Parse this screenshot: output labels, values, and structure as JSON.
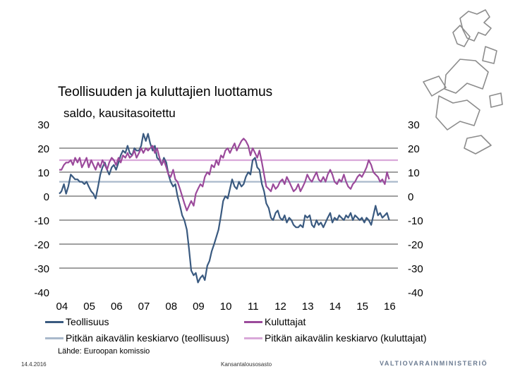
{
  "chart_data": {
    "type": "line",
    "title": "Teollisuuden ja kuluttajien luottamus",
    "subtitle": "saldo, kausitasoitettu",
    "x_tick_labels": [
      "04",
      "05",
      "06",
      "07",
      "08",
      "09",
      "10",
      "11",
      "12",
      "13",
      "14",
      "15",
      "16"
    ],
    "x_range": [
      2004.0,
      2016.4
    ],
    "ylim": [
      -40,
      30
    ],
    "y_ticks": [
      30,
      20,
      10,
      0,
      -10,
      -20,
      -30,
      -40
    ],
    "y_tick_labels": [
      "30",
      "20",
      "10",
      "0",
      "-10",
      "-20",
      "-30",
      "-40"
    ],
    "grid": true,
    "legend_position": "bottom",
    "series": [
      {
        "name": "Teollisuus",
        "color": "#3a5a80",
        "points": [
          [
            2004.0,
            1
          ],
          [
            2004.08,
            2
          ],
          [
            2004.17,
            5
          ],
          [
            2004.25,
            1
          ],
          [
            2004.33,
            4
          ],
          [
            2004.42,
            9
          ],
          [
            2004.5,
            8
          ],
          [
            2004.58,
            7
          ],
          [
            2004.67,
            7
          ],
          [
            2004.75,
            6
          ],
          [
            2004.83,
            6
          ],
          [
            2004.92,
            5
          ],
          [
            2005.0,
            6
          ],
          [
            2005.08,
            4
          ],
          [
            2005.17,
            2
          ],
          [
            2005.25,
            1
          ],
          [
            2005.33,
            -1
          ],
          [
            2005.42,
            4
          ],
          [
            2005.5,
            9
          ],
          [
            2005.58,
            12
          ],
          [
            2005.67,
            14
          ],
          [
            2005.75,
            11
          ],
          [
            2005.83,
            9
          ],
          [
            2005.92,
            12
          ],
          [
            2006.0,
            13
          ],
          [
            2006.08,
            11
          ],
          [
            2006.17,
            14
          ],
          [
            2006.25,
            17
          ],
          [
            2006.33,
            19
          ],
          [
            2006.42,
            18
          ],
          [
            2006.5,
            21
          ],
          [
            2006.58,
            18
          ],
          [
            2006.67,
            17
          ],
          [
            2006.75,
            20
          ],
          [
            2006.83,
            19
          ],
          [
            2006.92,
            19
          ],
          [
            2007.0,
            21
          ],
          [
            2007.08,
            26
          ],
          [
            2007.17,
            23
          ],
          [
            2007.25,
            26
          ],
          [
            2007.33,
            22
          ],
          [
            2007.42,
            19
          ],
          [
            2007.5,
            21
          ],
          [
            2007.58,
            16
          ],
          [
            2007.67,
            15
          ],
          [
            2007.75,
            13
          ],
          [
            2007.83,
            16
          ],
          [
            2007.92,
            14
          ],
          [
            2008.0,
            9
          ],
          [
            2008.08,
            6
          ],
          [
            2008.17,
            4
          ],
          [
            2008.25,
            5
          ],
          [
            2008.33,
            0
          ],
          [
            2008.42,
            -4
          ],
          [
            2008.5,
            -8
          ],
          [
            2008.58,
            -10
          ],
          [
            2008.67,
            -14
          ],
          [
            2008.75,
            -22
          ],
          [
            2008.83,
            -31
          ],
          [
            2008.92,
            -33
          ],
          [
            2009.0,
            -32
          ],
          [
            2009.08,
            -36
          ],
          [
            2009.17,
            -34
          ],
          [
            2009.25,
            -33
          ],
          [
            2009.33,
            -35
          ],
          [
            2009.42,
            -29
          ],
          [
            2009.5,
            -27
          ],
          [
            2009.58,
            -23
          ],
          [
            2009.67,
            -20
          ],
          [
            2009.75,
            -17
          ],
          [
            2009.83,
            -14
          ],
          [
            2009.92,
            -8
          ],
          [
            2010.0,
            -2
          ],
          [
            2010.08,
            0
          ],
          [
            2010.17,
            -1
          ],
          [
            2010.25,
            3
          ],
          [
            2010.33,
            7
          ],
          [
            2010.42,
            4
          ],
          [
            2010.5,
            3
          ],
          [
            2010.58,
            6
          ],
          [
            2010.67,
            4
          ],
          [
            2010.75,
            5
          ],
          [
            2010.83,
            8
          ],
          [
            2010.92,
            10
          ],
          [
            2011.0,
            9
          ],
          [
            2011.08,
            15
          ],
          [
            2011.17,
            16
          ],
          [
            2011.25,
            12
          ],
          [
            2011.33,
            11
          ],
          [
            2011.42,
            5
          ],
          [
            2011.5,
            2
          ],
          [
            2011.58,
            -3
          ],
          [
            2011.67,
            -5
          ],
          [
            2011.75,
            -9
          ],
          [
            2011.83,
            -10
          ],
          [
            2011.92,
            -7
          ],
          [
            2012.0,
            -6
          ],
          [
            2012.08,
            -9
          ],
          [
            2012.17,
            -10
          ],
          [
            2012.25,
            -8
          ],
          [
            2012.33,
            -11
          ],
          [
            2012.42,
            -9
          ],
          [
            2012.5,
            -10
          ],
          [
            2012.58,
            -12
          ],
          [
            2012.67,
            -13
          ],
          [
            2012.75,
            -13
          ],
          [
            2012.83,
            -12
          ],
          [
            2012.92,
            -13
          ],
          [
            2013.0,
            -8
          ],
          [
            2013.08,
            -9
          ],
          [
            2013.17,
            -8
          ],
          [
            2013.25,
            -12
          ],
          [
            2013.33,
            -13
          ],
          [
            2013.42,
            -10
          ],
          [
            2013.5,
            -12
          ],
          [
            2013.58,
            -11
          ],
          [
            2013.67,
            -13
          ],
          [
            2013.75,
            -11
          ],
          [
            2013.83,
            -9
          ],
          [
            2013.92,
            -7
          ],
          [
            2014.0,
            -11
          ],
          [
            2014.08,
            -9
          ],
          [
            2014.17,
            -10
          ],
          [
            2014.25,
            -8
          ],
          [
            2014.33,
            -9
          ],
          [
            2014.42,
            -10
          ],
          [
            2014.5,
            -8
          ],
          [
            2014.58,
            -9
          ],
          [
            2014.67,
            -7
          ],
          [
            2014.75,
            -10
          ],
          [
            2014.83,
            -8
          ],
          [
            2014.92,
            -9
          ],
          [
            2015.0,
            -10
          ],
          [
            2015.08,
            -9
          ],
          [
            2015.17,
            -11
          ],
          [
            2015.25,
            -9
          ],
          [
            2015.33,
            -10
          ],
          [
            2015.42,
            -12
          ],
          [
            2015.5,
            -8
          ],
          [
            2015.58,
            -4
          ],
          [
            2015.67,
            -8
          ],
          [
            2015.75,
            -7
          ],
          [
            2015.83,
            -9
          ],
          [
            2015.92,
            -8
          ],
          [
            2016.0,
            -7
          ],
          [
            2016.08,
            -10
          ]
        ]
      },
      {
        "name": "Kuluttajat",
        "color": "#9b4a9b",
        "points": [
          [
            2004.0,
            11
          ],
          [
            2004.08,
            11
          ],
          [
            2004.17,
            13
          ],
          [
            2004.25,
            14
          ],
          [
            2004.33,
            14
          ],
          [
            2004.42,
            15
          ],
          [
            2004.5,
            13
          ],
          [
            2004.58,
            16
          ],
          [
            2004.67,
            14
          ],
          [
            2004.75,
            16
          ],
          [
            2004.83,
            12
          ],
          [
            2004.92,
            14
          ],
          [
            2005.0,
            16
          ],
          [
            2005.08,
            12
          ],
          [
            2005.17,
            15
          ],
          [
            2005.25,
            13
          ],
          [
            2005.33,
            11
          ],
          [
            2005.42,
            14
          ],
          [
            2005.5,
            12
          ],
          [
            2005.58,
            15
          ],
          [
            2005.67,
            13
          ],
          [
            2005.75,
            11
          ],
          [
            2005.83,
            14
          ],
          [
            2005.92,
            16
          ],
          [
            2006.0,
            15
          ],
          [
            2006.08,
            13
          ],
          [
            2006.17,
            16
          ],
          [
            2006.25,
            14
          ],
          [
            2006.33,
            17
          ],
          [
            2006.42,
            16
          ],
          [
            2006.5,
            18
          ],
          [
            2006.58,
            16
          ],
          [
            2006.67,
            17
          ],
          [
            2006.75,
            19
          ],
          [
            2006.83,
            16
          ],
          [
            2006.92,
            18
          ],
          [
            2007.0,
            20
          ],
          [
            2007.08,
            18
          ],
          [
            2007.17,
            20
          ],
          [
            2007.25,
            19
          ],
          [
            2007.33,
            20
          ],
          [
            2007.42,
            21
          ],
          [
            2007.5,
            18
          ],
          [
            2007.58,
            20
          ],
          [
            2007.67,
            16
          ],
          [
            2007.75,
            13
          ],
          [
            2007.83,
            15
          ],
          [
            2007.92,
            12
          ],
          [
            2008.0,
            9
          ],
          [
            2008.08,
            8
          ],
          [
            2008.17,
            11
          ],
          [
            2008.25,
            7
          ],
          [
            2008.33,
            6
          ],
          [
            2008.42,
            3
          ],
          [
            2008.5,
            0
          ],
          [
            2008.58,
            -3
          ],
          [
            2008.67,
            -6
          ],
          [
            2008.75,
            -4
          ],
          [
            2008.83,
            -2
          ],
          [
            2008.92,
            -4
          ],
          [
            2009.0,
            1
          ],
          [
            2009.08,
            3
          ],
          [
            2009.17,
            5
          ],
          [
            2009.25,
            4
          ],
          [
            2009.33,
            8
          ],
          [
            2009.42,
            10
          ],
          [
            2009.5,
            9
          ],
          [
            2009.58,
            13
          ],
          [
            2009.67,
            12
          ],
          [
            2009.75,
            15
          ],
          [
            2009.83,
            13
          ],
          [
            2009.92,
            17
          ],
          [
            2010.0,
            16
          ],
          [
            2010.08,
            19
          ],
          [
            2010.17,
            20
          ],
          [
            2010.25,
            18
          ],
          [
            2010.33,
            20
          ],
          [
            2010.42,
            22
          ],
          [
            2010.5,
            19
          ],
          [
            2010.58,
            21
          ],
          [
            2010.67,
            23
          ],
          [
            2010.75,
            24
          ],
          [
            2010.83,
            23
          ],
          [
            2010.92,
            21
          ],
          [
            2011.0,
            17
          ],
          [
            2011.08,
            20
          ],
          [
            2011.17,
            18
          ],
          [
            2011.25,
            16
          ],
          [
            2011.33,
            19
          ],
          [
            2011.42,
            14
          ],
          [
            2011.5,
            9
          ],
          [
            2011.58,
            4
          ],
          [
            2011.67,
            3
          ],
          [
            2011.75,
            2
          ],
          [
            2011.83,
            5
          ],
          [
            2011.92,
            3
          ],
          [
            2012.0,
            4
          ],
          [
            2012.08,
            6
          ],
          [
            2012.17,
            7
          ],
          [
            2012.25,
            5
          ],
          [
            2012.33,
            8
          ],
          [
            2012.42,
            6
          ],
          [
            2012.5,
            4
          ],
          [
            2012.58,
            2
          ],
          [
            2012.67,
            3
          ],
          [
            2012.75,
            5
          ],
          [
            2012.83,
            2
          ],
          [
            2012.92,
            4
          ],
          [
            2013.0,
            6
          ],
          [
            2013.08,
            9
          ],
          [
            2013.17,
            7
          ],
          [
            2013.25,
            6
          ],
          [
            2013.33,
            8
          ],
          [
            2013.42,
            10
          ],
          [
            2013.5,
            7
          ],
          [
            2013.58,
            6
          ],
          [
            2013.67,
            8
          ],
          [
            2013.75,
            6
          ],
          [
            2013.83,
            9
          ],
          [
            2013.92,
            11
          ],
          [
            2014.0,
            9
          ],
          [
            2014.08,
            6
          ],
          [
            2014.17,
            5
          ],
          [
            2014.25,
            7
          ],
          [
            2014.33,
            6
          ],
          [
            2014.42,
            9
          ],
          [
            2014.5,
            6
          ],
          [
            2014.58,
            4
          ],
          [
            2014.67,
            3
          ],
          [
            2014.75,
            5
          ],
          [
            2014.83,
            6
          ],
          [
            2014.92,
            8
          ],
          [
            2015.0,
            9
          ],
          [
            2015.08,
            8
          ],
          [
            2015.17,
            10
          ],
          [
            2015.25,
            12
          ],
          [
            2015.33,
            15
          ],
          [
            2015.42,
            13
          ],
          [
            2015.5,
            10
          ],
          [
            2015.58,
            9
          ],
          [
            2015.67,
            8
          ],
          [
            2015.75,
            6
          ],
          [
            2015.83,
            7
          ],
          [
            2015.92,
            5
          ],
          [
            2016.0,
            10
          ],
          [
            2016.08,
            7
          ]
        ]
      },
      {
        "name": "Pitkän aikavälin keskiarvo (teollisuus)",
        "color": "#a9b9cb",
        "constant": 6
      },
      {
        "name": "Pitkän aikavälin keskiarvo (kuluttajat)",
        "color": "#d9a8d9",
        "constant": 15
      }
    ]
  },
  "source_label": "Lähde: Euroopan komissio",
  "footer": {
    "date": "14.4.2016",
    "center_text": "Kansantalousosasto",
    "ministry": "VALTIOVARAINMINISTERIÖ"
  },
  "colors": {
    "grid": "#000000",
    "crest": "#8c8c8c"
  }
}
